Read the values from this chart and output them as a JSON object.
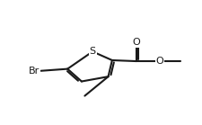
{
  "bg": "#ffffff",
  "lc": "#1a1a1a",
  "lw": 1.5,
  "dbo": 0.013,
  "fs": 8.0,
  "figw": 2.25,
  "figh": 1.39,
  "dpi": 100,
  "xlim": [
    0.0,
    1.0
  ],
  "ylim": [
    0.0,
    1.0
  ],
  "S": [
    0.43,
    0.62
  ],
  "C2": [
    0.555,
    0.53
  ],
  "C3": [
    0.53,
    0.36
  ],
  "C4": [
    0.36,
    0.31
  ],
  "C5": [
    0.27,
    0.44
  ],
  "Br": [
    0.1,
    0.42
  ],
  "Cc": [
    0.71,
    0.52
  ],
  "Od": [
    0.71,
    0.72
  ],
  "Os": [
    0.86,
    0.52
  ],
  "Me": [
    0.99,
    0.52
  ],
  "Mt": [
    0.38,
    0.16
  ],
  "dbo_carbonyl": 0.012,
  "inner_shorten": 0.12
}
